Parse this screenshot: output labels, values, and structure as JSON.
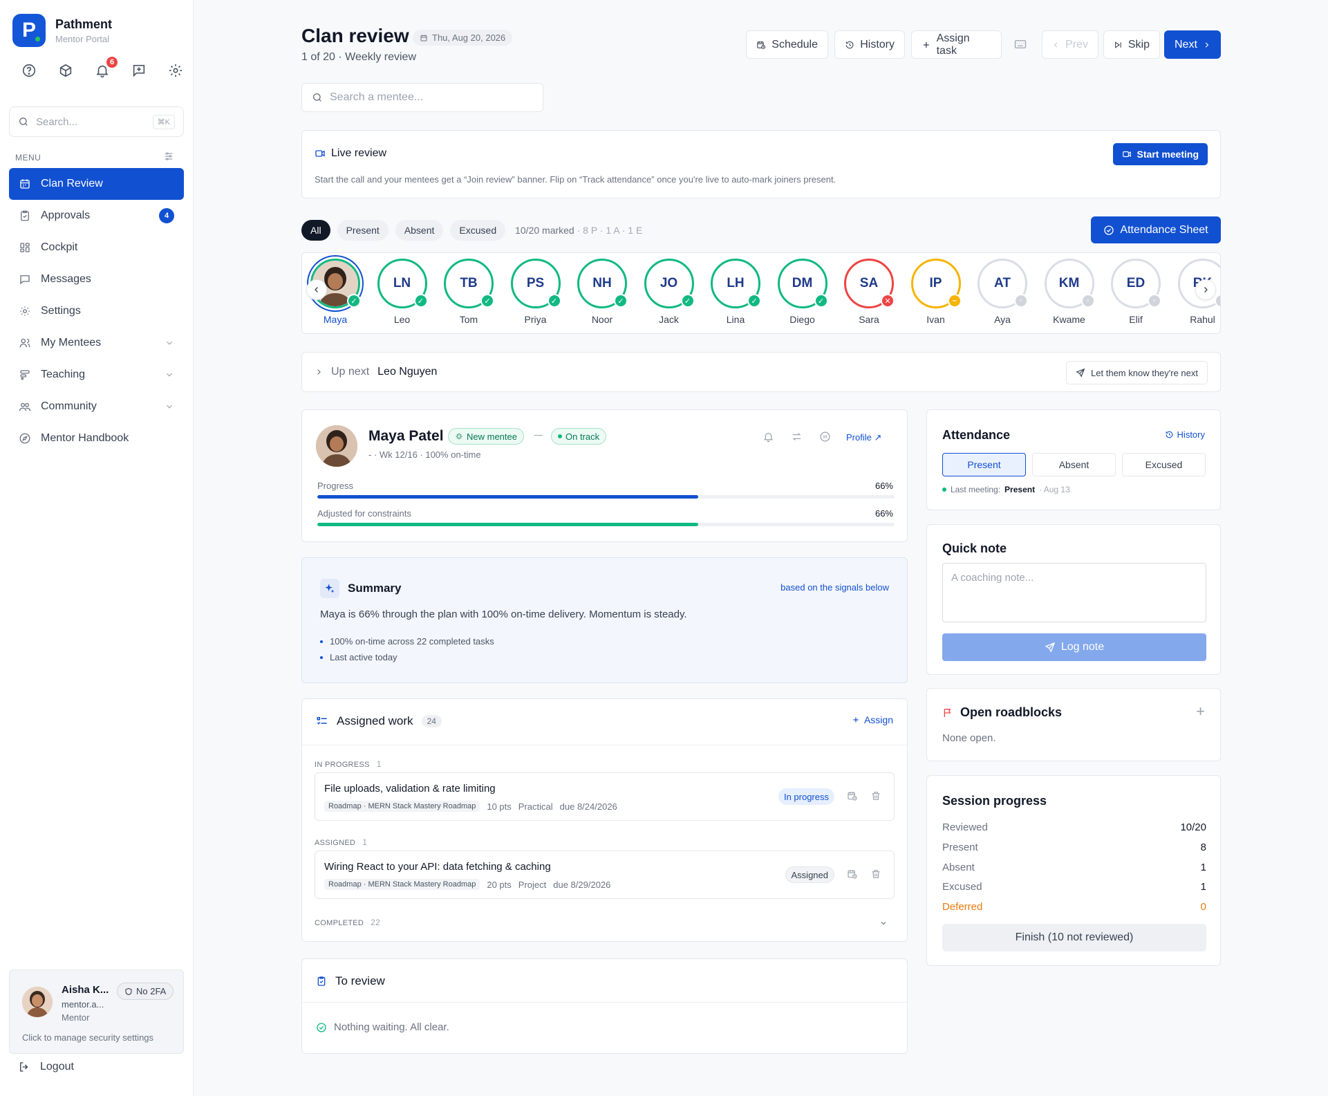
{
  "brand": {
    "name": "Pathment",
    "subtitle": "Mentor Portal",
    "logo_letter": "P"
  },
  "notifications": {
    "count": "6"
  },
  "sidebar": {
    "search_placeholder": "Search...",
    "search_shortcut": "⌘K",
    "menu_label": "MENU",
    "items": [
      {
        "label": "Clan Review",
        "icon": "calendar-icon",
        "active": true
      },
      {
        "label": "Approvals",
        "icon": "clipboard-icon",
        "count": "4"
      },
      {
        "label": "Cockpit",
        "icon": "grid-icon"
      },
      {
        "label": "Messages",
        "icon": "chat-icon"
      },
      {
        "label": "Settings",
        "icon": "gear-icon"
      },
      {
        "label": "My Mentees",
        "icon": "users-icon",
        "expandable": true
      },
      {
        "label": "Teaching",
        "icon": "layers-icon",
        "expandable": true
      },
      {
        "label": "Community",
        "icon": "community-icon",
        "expandable": true
      },
      {
        "label": "Mentor Handbook",
        "icon": "compass-icon"
      }
    ],
    "user": {
      "name": "Aisha K...",
      "email": "mentor.a...",
      "role": "Mentor",
      "twofa": "No 2FA",
      "hint": "Click to manage security settings"
    },
    "logout": "Logout"
  },
  "header": {
    "title": "Clan review",
    "date": "Thu, Aug 20, 2026",
    "subtitle": "1 of 20 · Weekly review",
    "buttons": {
      "schedule": "Schedule",
      "history": "History",
      "assign": "Assign task",
      "prev": "Prev",
      "skip": "Skip",
      "next": "Next"
    }
  },
  "main_search": {
    "placeholder": "Search a mentee..."
  },
  "live_review": {
    "title": "Live review",
    "description": "Start the call and your mentees get a “Join review” banner. Flip on “Track attendance” once you're live to auto-mark joiners present.",
    "button": "Start meeting"
  },
  "filters": {
    "chips": [
      "All",
      "Present",
      "Absent",
      "Excused"
    ],
    "marked": "10/20 marked",
    "marked_detail": "· 8 P · 1 A · 1 E",
    "attendance_button": "Attendance Sheet"
  },
  "mentees": [
    {
      "initials": "",
      "name": "Maya",
      "status": "present",
      "photo": true,
      "selected": true
    },
    {
      "initials": "LN",
      "name": "Leo",
      "status": "present"
    },
    {
      "initials": "TB",
      "name": "Tom",
      "status": "present"
    },
    {
      "initials": "PS",
      "name": "Priya",
      "status": "present"
    },
    {
      "initials": "NH",
      "name": "Noor",
      "status": "present"
    },
    {
      "initials": "JO",
      "name": "Jack",
      "status": "present"
    },
    {
      "initials": "LH",
      "name": "Lina",
      "status": "present"
    },
    {
      "initials": "DM",
      "name": "Diego",
      "status": "present"
    },
    {
      "initials": "SA",
      "name": "Sara",
      "status": "absent"
    },
    {
      "initials": "IP",
      "name": "Ivan",
      "status": "excused"
    },
    {
      "initials": "AT",
      "name": "Aya",
      "status": "none"
    },
    {
      "initials": "KM",
      "name": "Kwame",
      "status": "none"
    },
    {
      "initials": "ED",
      "name": "Elif",
      "status": "none"
    },
    {
      "initials": "RK",
      "name": "Rahul",
      "status": "none"
    }
  ],
  "up_next": {
    "label": "Up next",
    "name": "Leo Nguyen",
    "button": "Let them know they're next"
  },
  "profile": {
    "name": "Maya Patel",
    "tag_new": "New mentee",
    "tag_status": "On track",
    "meta": "- · Wk 12/16 · 100% on-time",
    "link": "Profile",
    "progress_label": "Progress",
    "progress_value": "66%",
    "progress": 0.66,
    "adjusted_label": "Adjusted for constraints",
    "adjusted_value": "66%",
    "adjusted": 0.66
  },
  "summary": {
    "title": "Summary",
    "link": "based on the signals below",
    "text": "Maya is 66% through the plan with 100% on-time delivery. Momentum is steady.",
    "bullets": [
      "100% on-time across 22 completed tasks",
      "Last active today"
    ]
  },
  "work": {
    "title": "Assigned work",
    "count": "24",
    "assign": "Assign",
    "sections": {
      "in_progress": "IN PROGRESS",
      "in_progress_count": "1",
      "assigned": "ASSIGNED",
      "assigned_count": "1",
      "completed": "COMPLETED",
      "completed_count": "22"
    },
    "tasks": [
      {
        "title": "File uploads, validation & rate limiting",
        "roadmap": "Roadmap · MERN Stack Mastery Roadmap",
        "pts": "10 pts",
        "kind": "Practical",
        "due": "due 8/24/2026",
        "status": "In progress"
      },
      {
        "title": "Wiring React to your API: data fetching & caching",
        "roadmap": "Roadmap · MERN Stack Mastery Roadmap",
        "pts": "20 pts",
        "kind": "Project",
        "due": "due 8/29/2026",
        "status": "Assigned"
      }
    ]
  },
  "to_review": {
    "title": "To review",
    "empty": "Nothing waiting. All clear."
  },
  "attendance": {
    "title": "Attendance",
    "history": "History",
    "options": [
      "Present",
      "Absent",
      "Excused"
    ],
    "last_label": "Last meeting:",
    "last_value": "Present",
    "last_date": "· Aug 13"
  },
  "quick_note": {
    "title": "Quick note",
    "placeholder": "A coaching note...",
    "button": "Log note"
  },
  "roadblocks": {
    "title": "Open roadblocks",
    "empty": "None open."
  },
  "session": {
    "title": "Session progress",
    "rows": [
      {
        "label": "Reviewed",
        "value": "10/20"
      },
      {
        "label": "Present",
        "value": "8"
      },
      {
        "label": "Absent",
        "value": "1"
      },
      {
        "label": "Excused",
        "value": "1"
      },
      {
        "label": "Deferred",
        "value": "0"
      }
    ],
    "finish": "Finish (10 not reviewed)"
  },
  "colors": {
    "accent": "#1150d1",
    "present": "#10b981",
    "absent": "#ef4444",
    "excused": "#f5b400"
  }
}
